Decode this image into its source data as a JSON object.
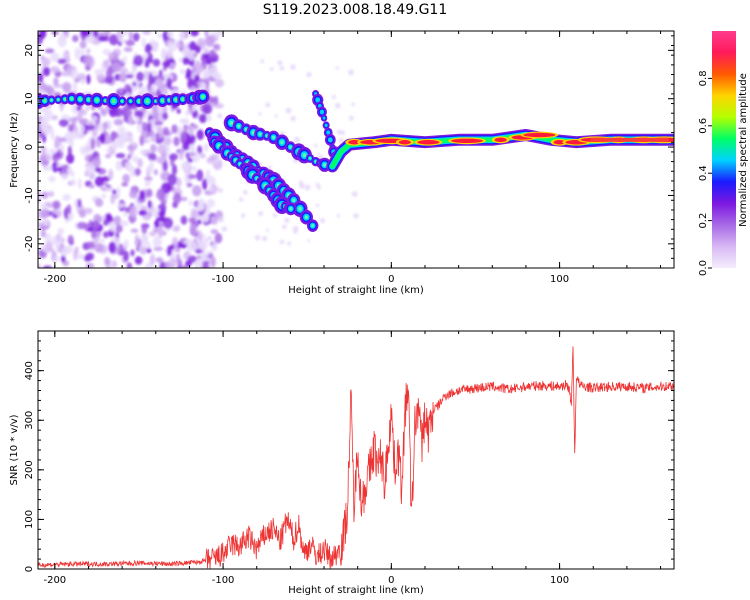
{
  "title": "S119.2023.008.18.49.G11",
  "chart_data": [
    {
      "type": "heatmap",
      "xlabel": "Height of straight line (km)",
      "ylabel": "Frequency (Hz)",
      "xlim": [
        -210,
        168
      ],
      "ylim": [
        -25,
        24
      ],
      "xticks": [
        -200,
        -100,
        0,
        100
      ],
      "yticks": [
        -20,
        -10,
        0,
        10,
        20
      ],
      "colorbar": {
        "label": "Normalized spectral amplitude",
        "range": [
          0,
          1
        ],
        "ticks": [
          "0.0",
          "0.2",
          "0.4",
          "0.6",
          "0.8"
        ],
        "tick_values": [
          0,
          0.2,
          0.4,
          0.6,
          0.8
        ],
        "colors": [
          "#f4eefc",
          "#d8b8f4",
          "#a86ae6",
          "#7c18e0",
          "#1a1aff",
          "#00d2ff",
          "#00ff66",
          "#b4ff00",
          "#ffd400",
          "#ff5a00",
          "#ff1a5a",
          "#ff3c8c"
        ]
      },
      "features": {
        "main_line": [
          [
            -35,
            -4
          ],
          [
            -30,
            -1
          ],
          [
            -25,
            0.5
          ],
          [
            -10,
            1
          ],
          [
            0,
            1.5
          ],
          [
            20,
            1
          ],
          [
            40,
            1.5
          ],
          [
            60,
            1.5
          ],
          [
            80,
            2.5
          ],
          [
            95,
            1.5
          ],
          [
            110,
            1
          ],
          [
            130,
            1.5
          ],
          [
            168,
            1.5
          ]
        ],
        "band_10hz": [
          [
            -210,
            9.5
          ],
          [
            -190,
            10
          ],
          [
            -165,
            9.5
          ],
          [
            -140,
            9.5
          ],
          [
            -120,
            10
          ],
          [
            -110,
            10.5
          ]
        ],
        "chirp_a": [
          [
            -108,
            3
          ],
          [
            -95,
            -1
          ],
          [
            -82,
            -4
          ],
          [
            -70,
            -7
          ],
          [
            -58,
            -11
          ],
          [
            -43,
            -18
          ]
        ],
        "chirp_b": [
          [
            -105,
            1
          ],
          [
            -95,
            -2
          ],
          [
            -85,
            -5
          ],
          [
            -75,
            -8
          ],
          [
            -65,
            -12
          ],
          [
            -58,
            -13
          ]
        ],
        "chirp_c": [
          [
            -95,
            5
          ],
          [
            -82,
            3
          ],
          [
            -70,
            2
          ],
          [
            -55,
            -1
          ],
          [
            -45,
            -3
          ],
          [
            -37,
            -4
          ]
        ],
        "chirp_d": [
          [
            -45,
            11
          ],
          [
            -40,
            6
          ],
          [
            -35,
            0
          ],
          [
            -32,
            -4
          ]
        ],
        "noise_extent": [
          -210,
          -110
        ]
      }
    },
    {
      "type": "line",
      "xlabel": "Height of straight line (km)",
      "ylabel": "SNR (10 * v/v)",
      "xlim": [
        -210,
        168
      ],
      "ylim": [
        0,
        480
      ],
      "xticks": [
        -200,
        -100,
        0,
        100
      ],
      "yticks": [
        0,
        100,
        200,
        300,
        400
      ],
      "color": "#ee3333",
      "series": [
        {
          "x": [
            -210,
            -190,
            -170,
            -150,
            -130,
            -115,
            -105,
            -100,
            -95,
            -90,
            -85,
            -80,
            -75,
            -70,
            -66,
            -62,
            -58,
            -55,
            -52,
            -48,
            -44,
            -40,
            -36,
            -33,
            -30,
            -28,
            -26,
            -24,
            -22,
            -20,
            -18,
            -15,
            -12,
            -10,
            -8,
            -6,
            -4,
            -2,
            0,
            2,
            4,
            6,
            8,
            10,
            12,
            14,
            16,
            18,
            20,
            22,
            25,
            28,
            32,
            36,
            40,
            50,
            60,
            70,
            80,
            90,
            100,
            104,
            106,
            107,
            108,
            109,
            110,
            112,
            120,
            130,
            140,
            150,
            160,
            168
          ],
          "y": [
            8,
            10,
            10,
            12,
            10,
            14,
            20,
            30,
            50,
            45,
            65,
            40,
            70,
            80,
            55,
            100,
            60,
            90,
            30,
            50,
            25,
            40,
            20,
            30,
            45,
            70,
            130,
            340,
            110,
            260,
            130,
            175,
            210,
            250,
            200,
            230,
            170,
            250,
            320,
            200,
            240,
            170,
            300,
            380,
            90,
            290,
            330,
            250,
            310,
            275,
            320,
            330,
            350,
            355,
            360,
            365,
            368,
            362,
            368,
            370,
            368,
            372,
            360,
            330,
            450,
            230,
            390,
            370,
            365,
            368,
            368,
            365,
            368,
            370
          ]
        }
      ]
    }
  ]
}
